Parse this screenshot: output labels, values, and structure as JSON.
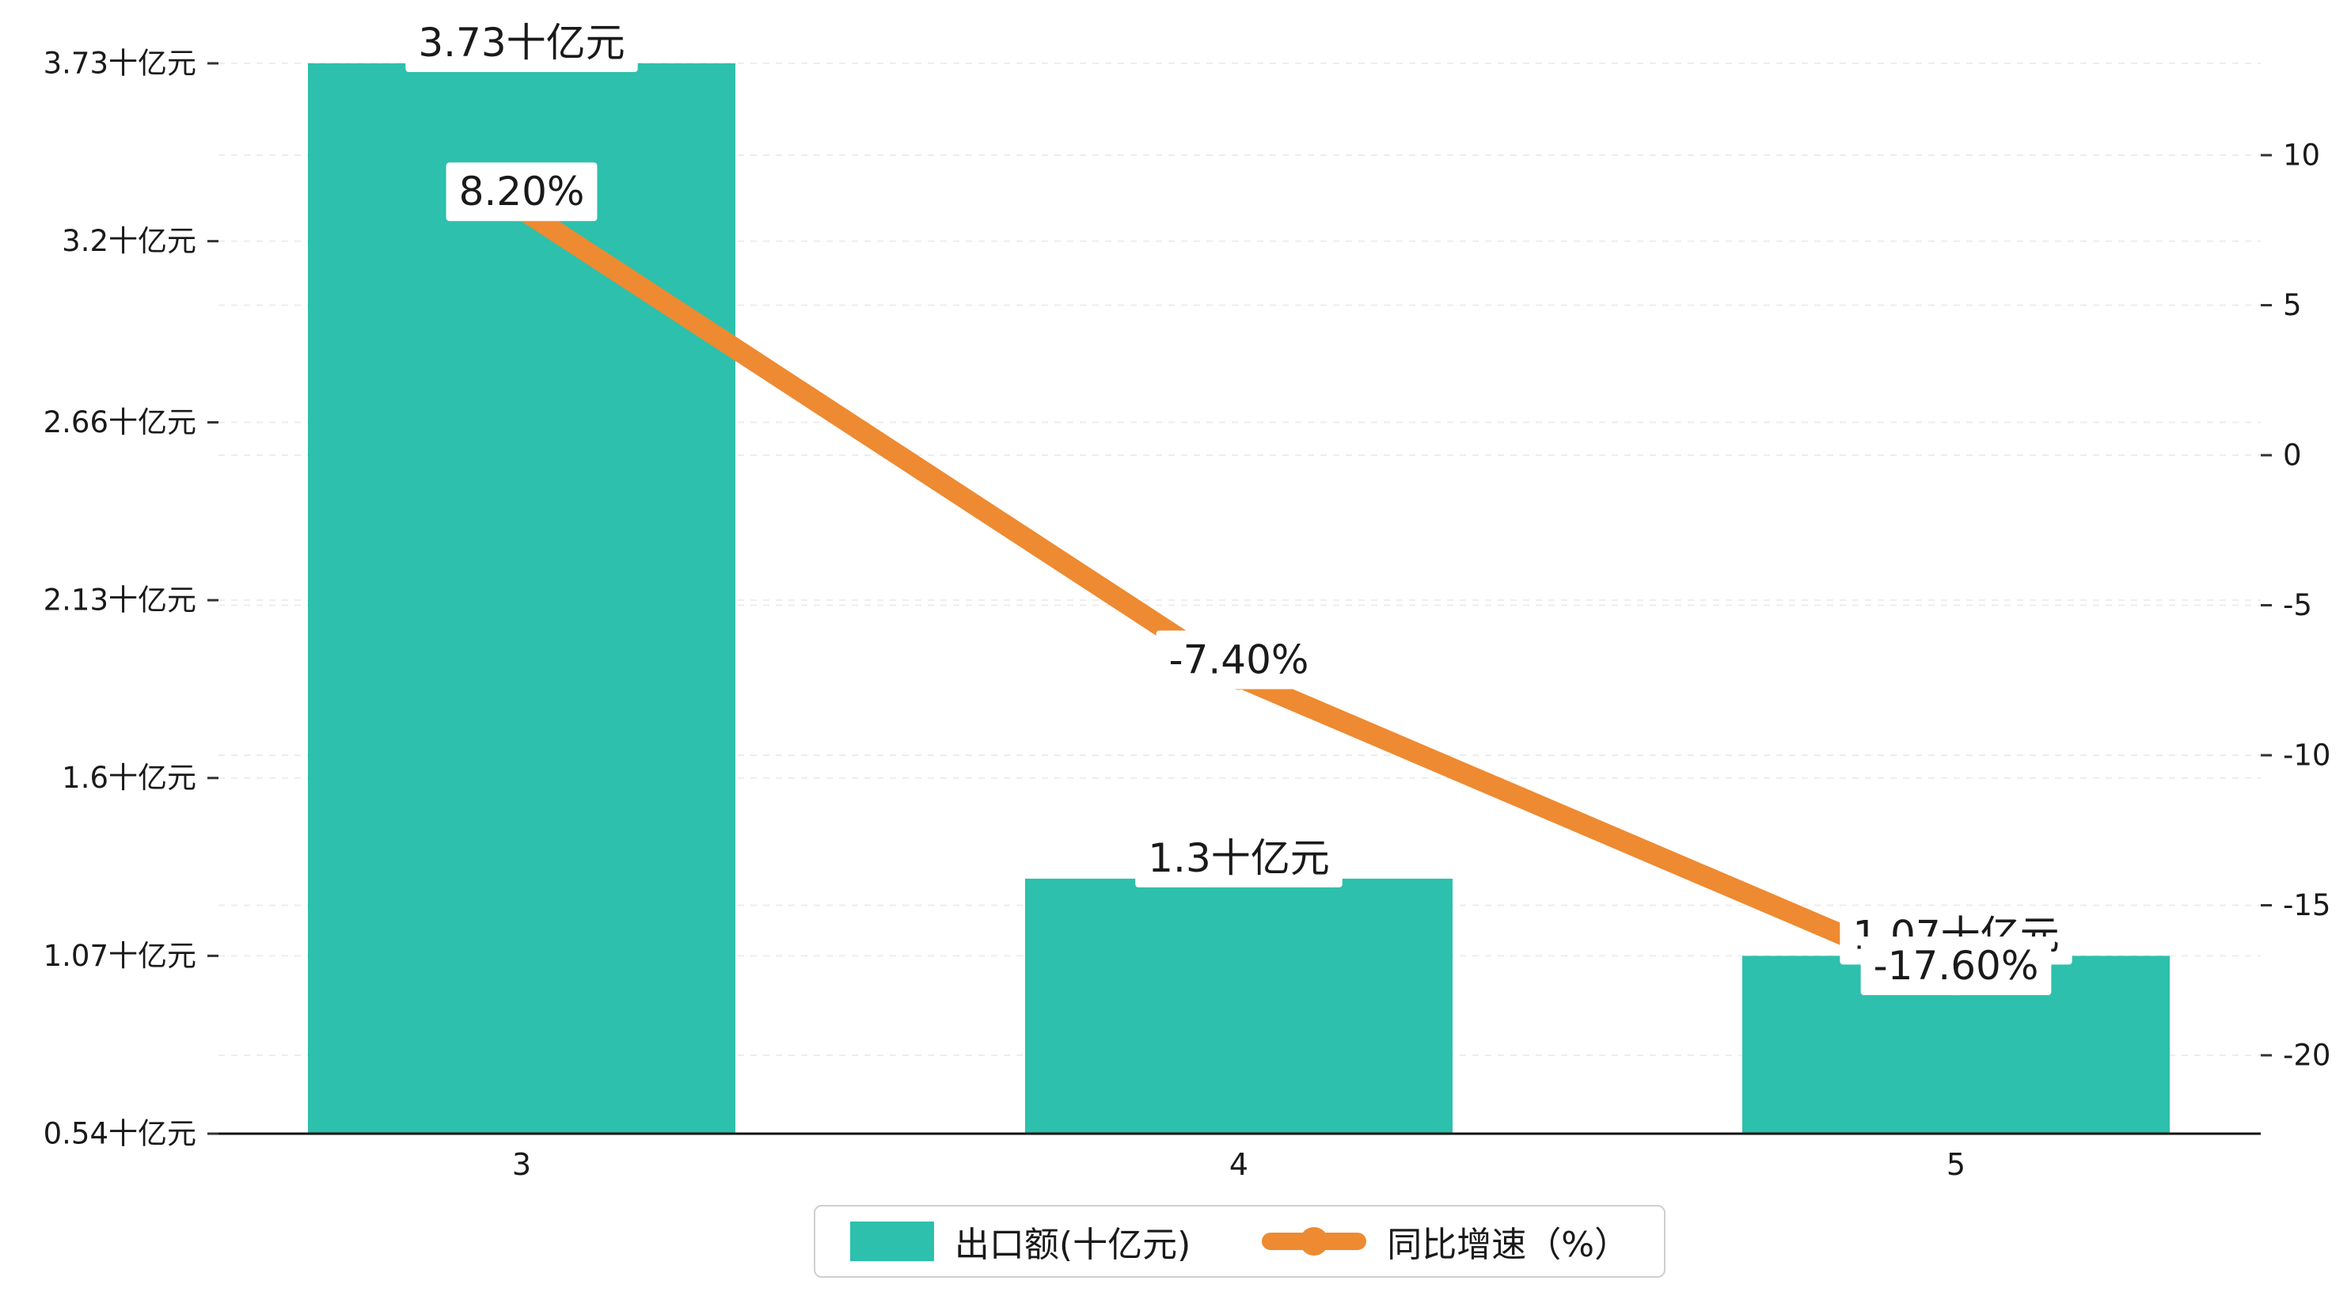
{
  "chart_data": {
    "type": "bar+line",
    "categories": [
      "3",
      "4",
      "5"
    ],
    "series": [
      {
        "name": "出口额(十亿元)",
        "type": "bar",
        "axis": "left",
        "color": "#2dc0ac",
        "values": [
          3.73,
          1.3,
          1.07
        ],
        "value_labels": [
          "3.73十亿元",
          "1.3十亿元",
          "1.07十亿元"
        ]
      },
      {
        "name": "同比增速（%）",
        "type": "line",
        "axis": "right",
        "color": "#ee8a31",
        "values": [
          8.2,
          -7.4,
          -17.6
        ],
        "value_labels": [
          "8.20%",
          "-7.40%",
          "-17.60%"
        ]
      }
    ],
    "left_axis": {
      "min": 0.54,
      "max": 3.73,
      "tick_values": [
        0.54,
        1.07,
        1.6,
        2.13,
        2.66,
        3.2,
        3.73
      ],
      "tick_labels": [
        "0.54十亿元",
        "1.07十亿元",
        "1.6十亿元",
        "2.13十亿元",
        "2.66十亿元",
        "3.2十亿元",
        "3.73十亿元"
      ]
    },
    "right_axis": {
      "tick_values": [
        10,
        5,
        0,
        -5,
        -10,
        -15,
        -20
      ],
      "tick_labels": [
        "10",
        "5",
        "0",
        "-5",
        "-10",
        "-15",
        "-20"
      ]
    },
    "legend": {
      "position": "bottom-center"
    },
    "grid": "dashed-horizontal",
    "background": "#ffffff",
    "text_color": "#1a1a1a"
  }
}
